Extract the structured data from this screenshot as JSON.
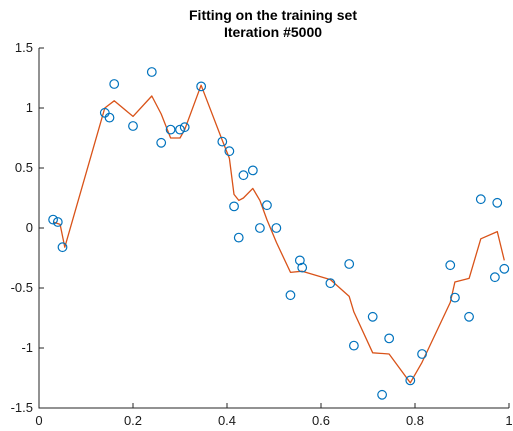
{
  "chart_data": {
    "type": "scatter",
    "title": [
      "Fitting on the training set",
      "Iteration #5000"
    ],
    "xlabel": "",
    "ylabel": "",
    "xlim": [
      0,
      1
    ],
    "ylim": [
      -1.5,
      1.5
    ],
    "xticks": [
      0,
      0.2,
      0.4,
      0.6,
      0.8,
      1
    ],
    "xtick_labels": [
      "0",
      "0.2",
      "0.4",
      "0.6",
      "0.8",
      "1"
    ],
    "yticks": [
      -1.5,
      -1,
      -0.5,
      0,
      0.5,
      1,
      1.5
    ],
    "ytick_labels": [
      "-1.5",
      "-1",
      "-0.5",
      "0",
      "0.5",
      "1",
      "1.5"
    ],
    "grid": false,
    "series": [
      {
        "kind": "scatter",
        "marker": "circle-open",
        "color": "#0072BD",
        "x": [
          0.03,
          0.04,
          0.05,
          0.14,
          0.15,
          0.16,
          0.2,
          0.24,
          0.26,
          0.28,
          0.3,
          0.31,
          0.345,
          0.39,
          0.405,
          0.415,
          0.425,
          0.435,
          0.455,
          0.47,
          0.485,
          0.505,
          0.535,
          0.555,
          0.56,
          0.62,
          0.66,
          0.67,
          0.71,
          0.73,
          0.745,
          0.79,
          0.815,
          0.875,
          0.885,
          0.915,
          0.94,
          0.97,
          0.975,
          0.99
        ],
        "y": [
          0.07,
          0.05,
          -0.16,
          0.96,
          0.92,
          1.2,
          0.85,
          1.3,
          0.71,
          0.82,
          0.82,
          0.84,
          1.18,
          0.72,
          0.64,
          0.18,
          -0.08,
          0.44,
          0.48,
          0.0,
          0.19,
          0.0,
          -0.56,
          -0.27,
          -0.33,
          -0.46,
          -0.3,
          -0.98,
          -0.74,
          -1.39,
          -0.92,
          -1.27,
          -1.05,
          -0.31,
          -0.58,
          -0.74,
          0.24,
          -0.41,
          0.21,
          -0.34
        ]
      },
      {
        "kind": "line",
        "color": "#D95319",
        "x": [
          0.03,
          0.045,
          0.055,
          0.14,
          0.16,
          0.2,
          0.24,
          0.26,
          0.28,
          0.3,
          0.31,
          0.345,
          0.39,
          0.405,
          0.415,
          0.425,
          0.435,
          0.455,
          0.47,
          0.485,
          0.505,
          0.535,
          0.56,
          0.62,
          0.66,
          0.67,
          0.71,
          0.745,
          0.79,
          0.815,
          0.875,
          0.885,
          0.915,
          0.94,
          0.975,
          0.99
        ],
        "y": [
          0.05,
          0.03,
          -0.16,
          1.0,
          1.06,
          0.93,
          1.1,
          0.95,
          0.75,
          0.75,
          0.82,
          1.19,
          0.73,
          0.58,
          0.28,
          0.23,
          0.25,
          0.33,
          0.23,
          0.07,
          -0.12,
          -0.37,
          -0.36,
          -0.43,
          -0.57,
          -0.7,
          -1.04,
          -1.05,
          -1.29,
          -1.12,
          -0.62,
          -0.45,
          -0.42,
          -0.09,
          -0.03,
          -0.27
        ]
      }
    ]
  }
}
